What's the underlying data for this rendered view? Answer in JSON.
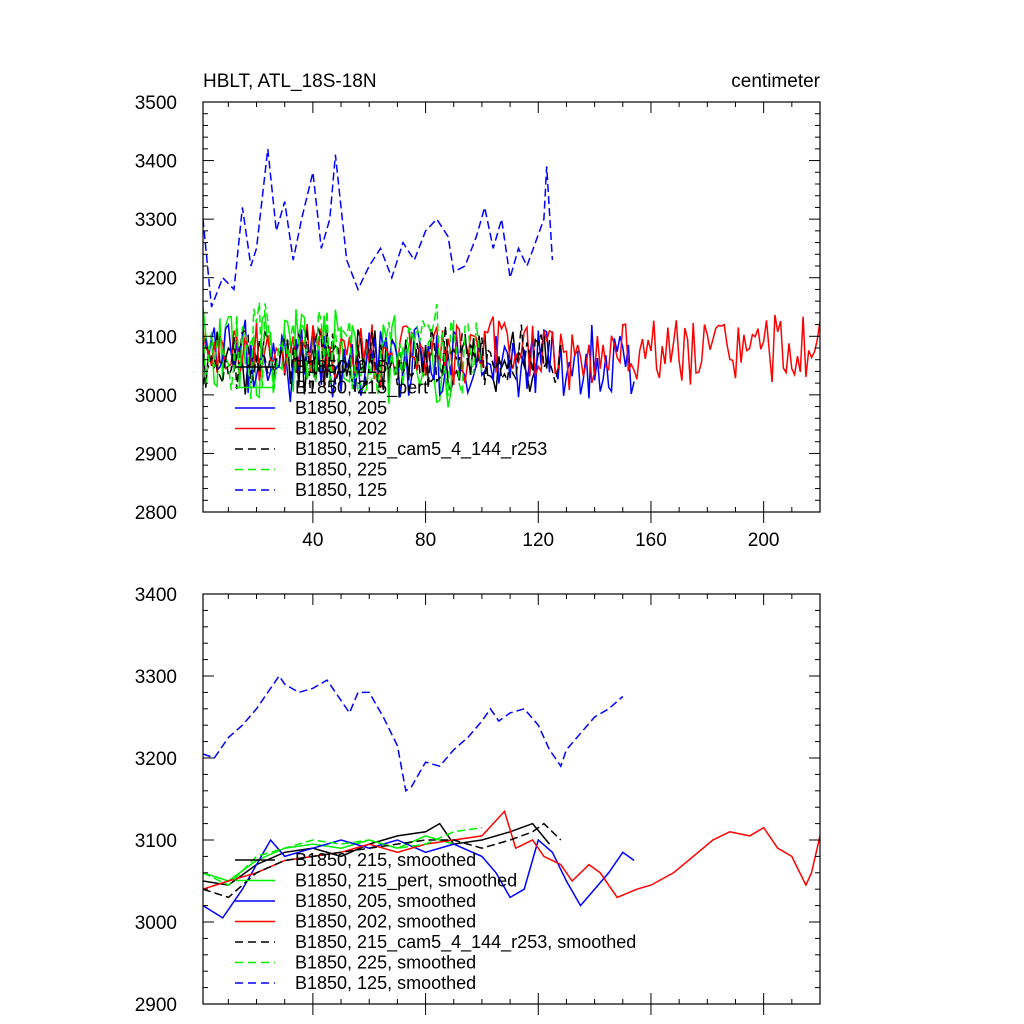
{
  "chart_data": [
    {
      "type": "line",
      "title_left": "HBLT, ATL_18S-18N",
      "title_right": "centimeter",
      "xlim": [
        1,
        220
      ],
      "ylim": [
        2800,
        3500
      ],
      "xticks": [
        40,
        80,
        120,
        160,
        200
      ],
      "yticks": [
        2800,
        2900,
        3000,
        3100,
        3200,
        3300,
        3400,
        3500
      ],
      "grid": false,
      "legend_position": "lower-left",
      "series": [
        {
          "name": "B1850, 215",
          "color": "#000000",
          "dash": "solid",
          "x_start": 1,
          "x_end": 124,
          "mean": 3060,
          "amp": 50,
          "seed": 11
        },
        {
          "name": "B1850, 215_pert",
          "color": "#00ee00",
          "dash": "solid",
          "x_start": 1,
          "x_end": 90,
          "mean": 3070,
          "amp": 75,
          "seed": 23
        },
        {
          "name": "B1850, 205",
          "color": "#0000ff",
          "dash": "solid",
          "x_start": 1,
          "x_end": 154,
          "mean": 3060,
          "amp": 60,
          "seed": 37
        },
        {
          "name": "B1850, 202",
          "color": "#ff0000",
          "dash": "solid",
          "x_start": 1,
          "x_end": 220,
          "mean": 3070,
          "amp": 55,
          "seed": 41
        },
        {
          "name": "B1850, 215_cam5_4_144_r253",
          "color": "#000000",
          "dash": "dashed",
          "x_start": 1,
          "x_end": 128,
          "mean": 3060,
          "amp": 50,
          "seed": 53
        },
        {
          "name": "B1850, 225",
          "color": "#00ee00",
          "dash": "dashed",
          "x_start": 1,
          "x_end": 100,
          "mean": 3080,
          "amp": 70,
          "seed": 67
        },
        {
          "name": "B1850, 125",
          "color": "#0000ff",
          "dash": "dashed",
          "x_start": 1,
          "x_end": 125,
          "points": [
            [
              1,
              3300
            ],
            [
              4,
              3150
            ],
            [
              8,
              3200
            ],
            [
              12,
              3180
            ],
            [
              15,
              3320
            ],
            [
              18,
              3220
            ],
            [
              20,
              3250
            ],
            [
              24,
              3420
            ],
            [
              27,
              3280
            ],
            [
              30,
              3330
            ],
            [
              33,
              3230
            ],
            [
              36,
              3300
            ],
            [
              40,
              3380
            ],
            [
              43,
              3250
            ],
            [
              46,
              3300
            ],
            [
              48,
              3410
            ],
            [
              52,
              3230
            ],
            [
              56,
              3180
            ],
            [
              60,
              3220
            ],
            [
              64,
              3250
            ],
            [
              68,
              3200
            ],
            [
              72,
              3260
            ],
            [
              76,
              3230
            ],
            [
              80,
              3280
            ],
            [
              84,
              3300
            ],
            [
              88,
              3270
            ],
            [
              90,
              3210
            ],
            [
              94,
              3220
            ],
            [
              98,
              3270
            ],
            [
              101,
              3320
            ],
            [
              104,
              3250
            ],
            [
              107,
              3300
            ],
            [
              110,
              3200
            ],
            [
              113,
              3250
            ],
            [
              116,
              3220
            ],
            [
              119,
              3260
            ],
            [
              122,
              3300
            ],
            [
              123,
              3390
            ],
            [
              125,
              3230
            ]
          ]
        }
      ]
    },
    {
      "type": "line",
      "ylim": [
        2900,
        3400
      ],
      "xlim": [
        1,
        220
      ],
      "yticks": [
        2900,
        3000,
        3100,
        3200,
        3300,
        3400
      ],
      "xticks": [
        40,
        80,
        120,
        160,
        200
      ],
      "grid": false,
      "legend_position": "lower-left",
      "series": [
        {
          "name": "B1850, 215, smoothed",
          "color": "#000000",
          "dash": "solid",
          "points": [
            [
              1,
              3050
            ],
            [
              10,
              3045
            ],
            [
              20,
              3070
            ],
            [
              30,
              3085
            ],
            [
              40,
              3090
            ],
            [
              50,
              3080
            ],
            [
              60,
              3095
            ],
            [
              70,
              3105
            ],
            [
              80,
              3110
            ],
            [
              85,
              3120
            ],
            [
              90,
              3095
            ],
            [
              100,
              3100
            ],
            [
              110,
              3110
            ],
            [
              118,
              3120
            ],
            [
              124,
              3095
            ]
          ]
        },
        {
          "name": "B1850, 215_pert, smoothed",
          "color": "#00ee00",
          "dash": "solid",
          "points": [
            [
              1,
              3060
            ],
            [
              10,
              3050
            ],
            [
              20,
              3075
            ],
            [
              30,
              3090
            ],
            [
              40,
              3095
            ],
            [
              50,
              3090
            ],
            [
              60,
              3100
            ],
            [
              70,
              3090
            ],
            [
              80,
              3105
            ],
            [
              90,
              3095
            ]
          ]
        },
        {
          "name": "B1850, 205, smoothed",
          "color": "#0000ff",
          "dash": "solid",
          "points": [
            [
              1,
              3020
            ],
            [
              8,
              3005
            ],
            [
              15,
              3040
            ],
            [
              20,
              3070
            ],
            [
              25,
              3100
            ],
            [
              30,
              3080
            ],
            [
              40,
              3090
            ],
            [
              50,
              3100
            ],
            [
              60,
              3090
            ],
            [
              70,
              3100
            ],
            [
              80,
              3085
            ],
            [
              90,
              3095
            ],
            [
              100,
              3080
            ],
            [
              105,
              3060
            ],
            [
              110,
              3030
            ],
            [
              115,
              3040
            ],
            [
              120,
              3100
            ],
            [
              125,
              3085
            ],
            [
              130,
              3050
            ],
            [
              135,
              3020
            ],
            [
              140,
              3040
            ],
            [
              145,
              3060
            ],
            [
              150,
              3085
            ],
            [
              154,
              3075
            ]
          ]
        },
        {
          "name": "B1850, 202, smoothed",
          "color": "#ff0000",
          "dash": "solid",
          "points": [
            [
              1,
              3040
            ],
            [
              10,
              3050
            ],
            [
              20,
              3060
            ],
            [
              30,
              3075
            ],
            [
              40,
              3080
            ],
            [
              50,
              3085
            ],
            [
              60,
              3095
            ],
            [
              70,
              3085
            ],
            [
              80,
              3095
            ],
            [
              90,
              3100
            ],
            [
              100,
              3105
            ],
            [
              108,
              3135
            ],
            [
              112,
              3090
            ],
            [
              118,
              3100
            ],
            [
              122,
              3080
            ],
            [
              128,
              3070
            ],
            [
              132,
              3050
            ],
            [
              138,
              3070
            ],
            [
              142,
              3060
            ],
            [
              148,
              3030
            ],
            [
              155,
              3040
            ],
            [
              160,
              3045
            ],
            [
              168,
              3060
            ],
            [
              175,
              3080
            ],
            [
              182,
              3100
            ],
            [
              188,
              3110
            ],
            [
              195,
              3105
            ],
            [
              200,
              3115
            ],
            [
              205,
              3090
            ],
            [
              210,
              3080
            ],
            [
              215,
              3045
            ],
            [
              217,
              3060
            ],
            [
              220,
              3105
            ]
          ]
        },
        {
          "name": "B1850, 215_cam5_4_144_r253, smoothed",
          "color": "#000000",
          "dash": "dashed",
          "points": [
            [
              1,
              3040
            ],
            [
              10,
              3030
            ],
            [
              20,
              3060
            ],
            [
              30,
              3075
            ],
            [
              40,
              3080
            ],
            [
              50,
              3085
            ],
            [
              60,
              3090
            ],
            [
              70,
              3095
            ],
            [
              80,
              3100
            ],
            [
              90,
              3100
            ],
            [
              100,
              3090
            ],
            [
              110,
              3100
            ],
            [
              118,
              3110
            ],
            [
              122,
              3120
            ],
            [
              128,
              3100
            ]
          ]
        },
        {
          "name": "B1850, 225, smoothed",
          "color": "#00ee00",
          "dash": "dashed",
          "points": [
            [
              1,
              3060
            ],
            [
              10,
              3045
            ],
            [
              20,
              3080
            ],
            [
              30,
              3090
            ],
            [
              40,
              3100
            ],
            [
              50,
              3095
            ],
            [
              60,
              3100
            ],
            [
              70,
              3090
            ],
            [
              80,
              3095
            ],
            [
              90,
              3110
            ],
            [
              100,
              3115
            ]
          ]
        },
        {
          "name": "B1850, 125, smoothed",
          "color": "#0000ff",
          "dash": "dashed",
          "points": [
            [
              1,
              3205
            ],
            [
              5,
              3200
            ],
            [
              10,
              3225
            ],
            [
              15,
              3240
            ],
            [
              20,
              3260
            ],
            [
              25,
              3285
            ],
            [
              28,
              3300
            ],
            [
              30,
              3290
            ],
            [
              35,
              3280
            ],
            [
              40,
              3285
            ],
            [
              45,
              3295
            ],
            [
              50,
              3270
            ],
            [
              53,
              3255
            ],
            [
              56,
              3280
            ],
            [
              60,
              3280
            ],
            [
              65,
              3250
            ],
            [
              70,
              3215
            ],
            [
              73,
              3160
            ],
            [
              75,
              3165
            ],
            [
              80,
              3195
            ],
            [
              85,
              3190
            ],
            [
              90,
              3210
            ],
            [
              95,
              3225
            ],
            [
              100,
              3245
            ],
            [
              103,
              3260
            ],
            [
              106,
              3245
            ],
            [
              110,
              3255
            ],
            [
              115,
              3260
            ],
            [
              120,
              3240
            ],
            [
              124,
              3210
            ],
            [
              126,
              3200
            ],
            [
              128,
              3190
            ],
            [
              130,
              3210
            ],
            [
              135,
              3230
            ],
            [
              140,
              3250
            ],
            [
              145,
              3260
            ],
            [
              150,
              3275
            ]
          ]
        }
      ]
    }
  ]
}
